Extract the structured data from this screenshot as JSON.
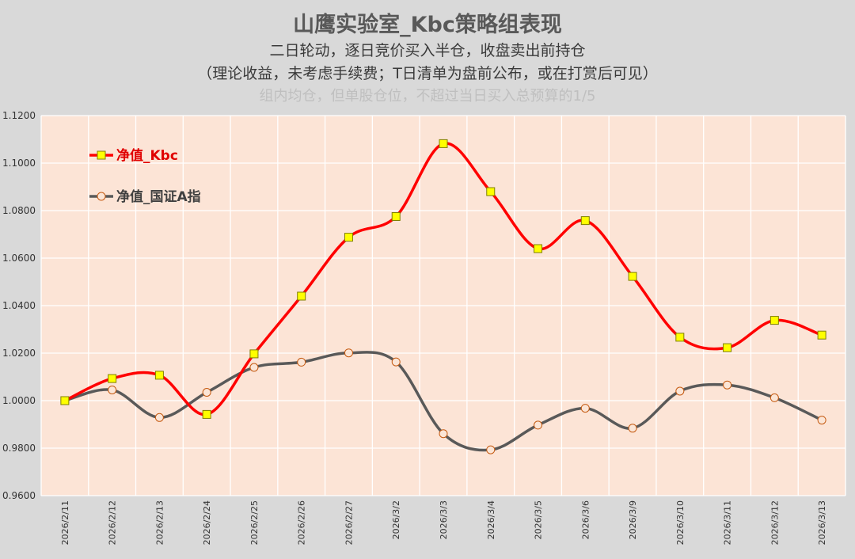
{
  "title": "山鹰实验室_Kbc策略组表现",
  "subtitle_1": "二日轮动，逐日竞价买入半仓，收盘卖出前持仓",
  "subtitle_2": "（理论收益，未考虑手续费；T日清单为盘前公布，或在打赏后可见）",
  "subtitle_3": "组内均仓，但单股仓位，不超过当日买入总预算的1/5",
  "colors": {
    "page_bg": "#d9d9d9",
    "plot_bg": "#fce4d6",
    "grid": "#ffffff",
    "kbc_line": "#ff0000",
    "kbc_marker_fill": "#ffff00",
    "kbc_marker_stroke": "#7f7f00",
    "idx_line": "#595959",
    "idx_marker_fill": "#fbe5d6",
    "idx_marker_stroke": "#c55a11"
  },
  "chart_data": {
    "type": "line",
    "categories": [
      "2026/2/11",
      "2026/2/12",
      "2026/2/13",
      "2026/2/24",
      "2026/2/25",
      "2026/2/26",
      "2026/2/27",
      "2026/3/2",
      "2026/3/3",
      "2026/3/4",
      "2026/3/5",
      "2026/3/6",
      "2026/3/9",
      "2026/3/10",
      "2026/3/11",
      "2026/3/12",
      "2026/3/13"
    ],
    "series": [
      {
        "name": "净值_Kbc",
        "values": [
          1.0,
          1.0093,
          1.0107,
          0.9942,
          1.0197,
          1.044,
          1.0688,
          1.0775,
          1.1082,
          1.088,
          1.064,
          1.0758,
          1.0523,
          1.0267,
          1.0223,
          1.0338,
          1.0276
        ]
      },
      {
        "name": "净值_国证A指",
        "values": [
          1.0,
          1.0045,
          0.9929,
          1.0035,
          1.014,
          1.0162,
          1.0201,
          1.0163,
          0.9861,
          0.9793,
          0.9897,
          0.9968,
          0.9884,
          1.004,
          1.0066,
          1.0012,
          0.9918
        ]
      }
    ],
    "ylim": [
      0.96,
      1.12
    ],
    "yticks": [
      "0.9600",
      "0.9800",
      "1.0000",
      "1.0200",
      "1.0400",
      "1.0600",
      "1.0800",
      "1.1000",
      "1.1200"
    ],
    "xlabel": "",
    "ylabel": "",
    "grid": true,
    "legend": "top-left"
  }
}
